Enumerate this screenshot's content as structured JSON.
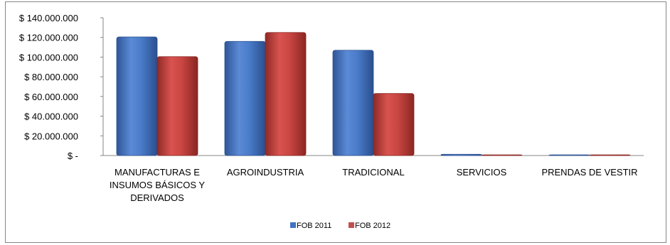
{
  "chart_data": {
    "type": "bar",
    "categories": [
      [
        "MANUFACTURAS E",
        "INSUMOS BÁSICOS Y",
        "DERIVADOS"
      ],
      [
        "AGROINDUSTRIA"
      ],
      [
        "TRADICIONAL"
      ],
      [
        "SERVICIOS"
      ],
      [
        "PRENDAS DE VESTIR"
      ]
    ],
    "series": [
      {
        "name": "FOB 2011",
        "color": "#4472C4",
        "values": [
          120500000,
          116000000,
          107000000,
          1200000,
          200000
        ]
      },
      {
        "name": "FOB 2012",
        "color": "#C0504D",
        "values": [
          100500000,
          125000000,
          63000000,
          300000,
          200000
        ]
      }
    ],
    "ylim": [
      0,
      140000000
    ],
    "yticks": [
      0,
      20000000,
      40000000,
      60000000,
      80000000,
      100000000,
      120000000,
      140000000
    ],
    "ytick_labels": [
      "$ -",
      "$ 20.000.000",
      "$ 40.000.000",
      "$ 60.000.000",
      "$ 80.000.000",
      "$ 100.000.000",
      "$ 120.000.000",
      "$ 140.000.000"
    ],
    "grid": false,
    "legend": "bottom",
    "title": "",
    "xlabel": "",
    "ylabel": ""
  }
}
